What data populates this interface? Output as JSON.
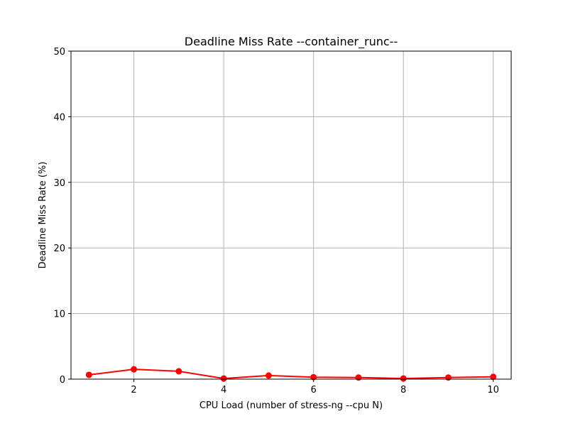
{
  "chart_data": {
    "type": "line",
    "title": "Deadline Miss Rate --container_runc--",
    "xlabel": "CPU Load (number of stress-ng --cpu N)",
    "ylabel": "Deadline Miss Rate (%)",
    "xlim": [
      0.6,
      10.4
    ],
    "ylim": [
      0,
      50
    ],
    "xticks": [
      2,
      4,
      6,
      8,
      10
    ],
    "yticks": [
      0,
      10,
      20,
      30,
      40,
      50
    ],
    "grid": true,
    "series": [
      {
        "color": "#ff0000",
        "marker": "circle",
        "x": [
          1,
          2,
          3,
          4,
          5,
          6,
          7,
          8,
          9,
          10
        ],
        "y": [
          0.65,
          1.5,
          1.2,
          0.1,
          0.55,
          0.3,
          0.25,
          0.1,
          0.25,
          0.35
        ]
      }
    ]
  }
}
